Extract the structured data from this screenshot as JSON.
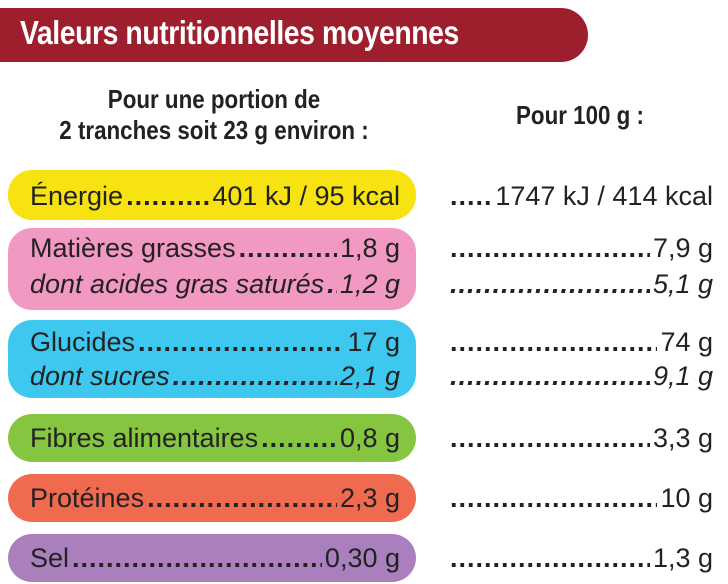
{
  "title": "Valeurs nutritionnelles moyennes",
  "col_portion": {
    "line1": "Pour une portion de",
    "line2": "2 tranches soit 23 g environ :"
  },
  "col_100g": "Pour 100 g :",
  "colors": {
    "header": "#9d1f2e",
    "energie": "#f7e312",
    "matieres": "#f198c3",
    "glucides": "#3ec8ef",
    "fibres": "#86c540",
    "proteines": "#f06a4f",
    "sel": "#a97fbd"
  },
  "rows": [
    {
      "label": "Énergie",
      "portion": "401 kJ / 95 kcal",
      "per100": "1747 kJ / 414 kcal"
    },
    {
      "label": "Matières grasses",
      "portion": "1,8 g",
      "per100": "7,9 g"
    },
    {
      "label": "dont acides gras saturés",
      "portion": "1,2 g",
      "per100": "5,1 g"
    },
    {
      "label": "Glucides",
      "portion": "17 g",
      "per100": "74 g"
    },
    {
      "label": "dont sucres",
      "portion": "2,1 g",
      "per100": "9,1 g"
    },
    {
      "label": "Fibres alimentaires",
      "portion": "0,8 g",
      "per100": "3,3 g"
    },
    {
      "label": "Protéines",
      "portion": "2,3 g",
      "per100": "10 g"
    },
    {
      "label": "Sel",
      "portion": "0,30 g",
      "per100": "1,3 g"
    }
  ]
}
